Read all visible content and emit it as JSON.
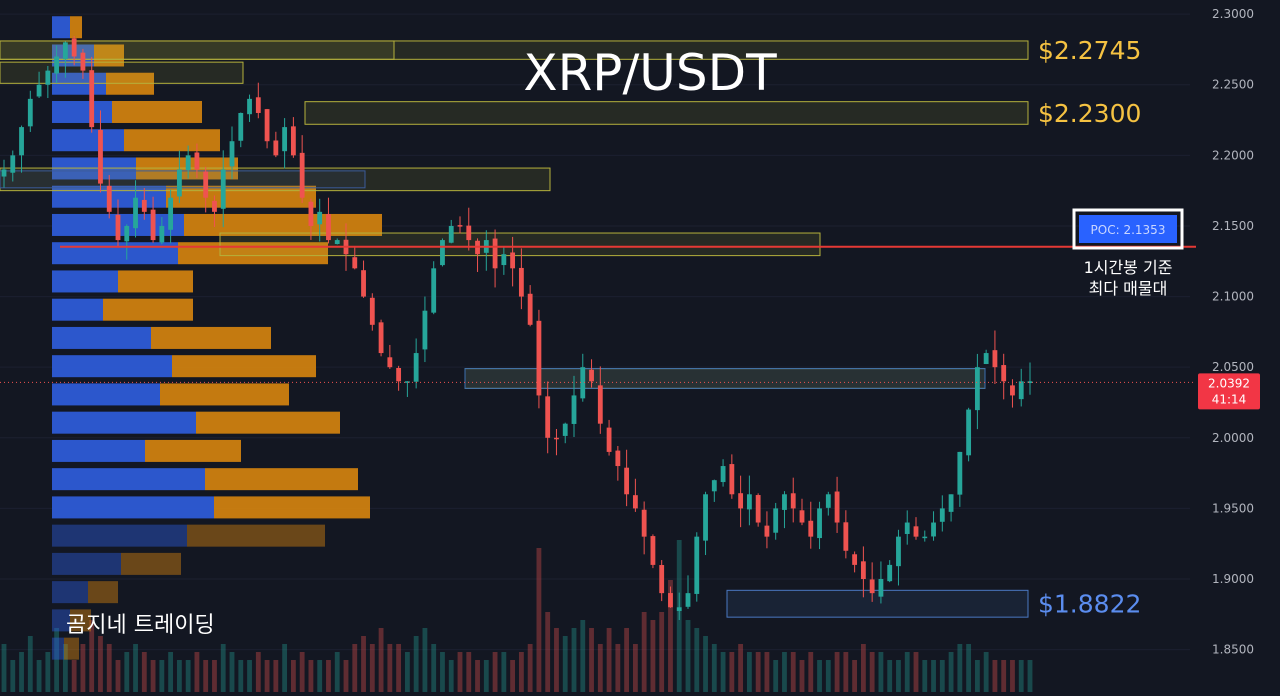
{
  "chart_data": {
    "type": "candlestick",
    "title": "XRP/USDT",
    "watermark": "곰지네 트레이딩",
    "ylim": [
      1.82,
      2.31
    ],
    "y_ticks": [
      "2.3000",
      "2.2500",
      "2.2000",
      "2.1500",
      "2.1000",
      "2.0500",
      "2.0000",
      "1.9500",
      "1.9000",
      "1.8500"
    ],
    "current_price": {
      "value": 2.0392,
      "label": "2.0392",
      "countdown": "41:14"
    },
    "poc": {
      "value": 2.1353,
      "label": "POC: 2.1353",
      "note_line1": "1시간봉 기준",
      "note_line2": "최다 매물대"
    },
    "levels": [
      {
        "label": "$2.2745",
        "low": 2.268,
        "high": 2.281,
        "color": "#f5c242"
      },
      {
        "label": "$2.2300",
        "low": 2.222,
        "high": 2.238,
        "color": "#f5c242"
      },
      {
        "label": "$1.8822",
        "low": 1.873,
        "high": 1.892,
        "color": "#5b8def"
      }
    ],
    "volume_profile": [
      {
        "price": 2.29,
        "buy": 0.06,
        "sell": 0.04
      },
      {
        "price": 2.27,
        "buy": 0.14,
        "sell": 0.1
      },
      {
        "price": 2.25,
        "buy": 0.18,
        "sell": 0.16
      },
      {
        "price": 2.23,
        "buy": 0.2,
        "sell": 0.3
      },
      {
        "price": 2.21,
        "buy": 0.24,
        "sell": 0.32
      },
      {
        "price": 2.19,
        "buy": 0.28,
        "sell": 0.34
      },
      {
        "price": 2.17,
        "buy": 0.38,
        "sell": 0.5
      },
      {
        "price": 2.15,
        "buy": 0.44,
        "sell": 0.66
      },
      {
        "price": 2.13,
        "buy": 0.42,
        "sell": 0.5
      },
      {
        "price": 2.11,
        "buy": 0.22,
        "sell": 0.25
      },
      {
        "price": 2.09,
        "buy": 0.17,
        "sell": 0.3
      },
      {
        "price": 2.07,
        "buy": 0.33,
        "sell": 0.4
      },
      {
        "price": 2.05,
        "buy": 0.4,
        "sell": 0.48
      },
      {
        "price": 2.03,
        "buy": 0.36,
        "sell": 0.43
      },
      {
        "price": 2.01,
        "buy": 0.48,
        "sell": 0.48
      },
      {
        "price": 1.99,
        "buy": 0.31,
        "sell": 0.32
      },
      {
        "price": 1.97,
        "buy": 0.51,
        "sell": 0.51
      },
      {
        "price": 1.95,
        "buy": 0.54,
        "sell": 0.52
      },
      {
        "price": 1.93,
        "buy": 0.45,
        "sell": 0.46
      },
      {
        "price": 1.91,
        "buy": 0.23,
        "sell": 0.2
      },
      {
        "price": 1.89,
        "buy": 0.12,
        "sell": 0.1
      },
      {
        "price": 1.87,
        "buy": 0.06,
        "sell": 0.07
      },
      {
        "price": 1.85,
        "buy": 0.04,
        "sell": 0.05
      }
    ],
    "close_path": [
      2.19,
      2.2,
      2.22,
      2.24,
      2.25,
      2.26,
      2.27,
      2.28,
      2.27,
      2.26,
      2.22,
      2.18,
      2.16,
      2.14,
      2.15,
      2.17,
      2.16,
      2.14,
      2.15,
      2.17,
      2.19,
      2.2,
      2.19,
      2.17,
      2.16,
      2.19,
      2.21,
      2.23,
      2.24,
      2.23,
      2.21,
      2.2,
      2.22,
      2.2,
      2.17,
      2.15,
      2.16,
      2.14,
      2.14,
      2.13,
      2.12,
      2.1,
      2.08,
      2.06,
      2.05,
      2.04,
      2.04,
      2.06,
      2.09,
      2.12,
      2.14,
      2.15,
      2.15,
      2.14,
      2.13,
      2.14,
      2.12,
      2.13,
      2.12,
      2.1,
      2.08,
      2.03,
      2.0,
      2.0,
      2.01,
      2.03,
      2.05,
      2.04,
      2.01,
      1.99,
      1.98,
      1.96,
      1.95,
      1.93,
      1.91,
      1.89,
      1.88,
      1.88,
      1.89,
      1.93,
      1.96,
      1.97,
      1.98,
      1.96,
      1.95,
      1.96,
      1.94,
      1.93,
      1.95,
      1.96,
      1.95,
      1.94,
      1.93,
      1.95,
      1.96,
      1.94,
      1.92,
      1.91,
      1.9,
      1.89,
      1.9,
      1.91,
      1.93,
      1.94,
      1.93,
      1.93,
      1.94,
      1.95,
      1.96,
      1.99,
      2.02,
      2.05,
      2.06,
      2.05,
      2.04,
      2.03,
      2.04,
      2.04
    ],
    "volume": [
      0.3,
      0.2,
      0.25,
      0.35,
      0.2,
      0.25,
      0.4,
      0.3,
      0.2,
      0.3,
      0.45,
      0.35,
      0.3,
      0.2,
      0.25,
      0.3,
      0.25,
      0.2,
      0.2,
      0.25,
      0.2,
      0.2,
      0.25,
      0.2,
      0.2,
      0.3,
      0.25,
      0.2,
      0.2,
      0.25,
      0.2,
      0.2,
      0.3,
      0.2,
      0.25,
      0.2,
      0.2,
      0.2,
      0.25,
      0.2,
      0.3,
      0.35,
      0.3,
      0.4,
      0.3,
      0.3,
      0.25,
      0.35,
      0.4,
      0.3,
      0.25,
      0.2,
      0.25,
      0.25,
      0.2,
      0.2,
      0.25,
      0.25,
      0.2,
      0.25,
      0.3,
      0.9,
      0.5,
      0.4,
      0.35,
      0.4,
      0.45,
      0.4,
      0.3,
      0.4,
      0.3,
      0.4,
      0.3,
      0.5,
      0.45,
      0.5,
      0.7,
      0.95,
      0.45,
      0.4,
      0.35,
      0.3,
      0.25,
      0.25,
      0.3,
      0.25,
      0.25,
      0.25,
      0.2,
      0.25,
      0.25,
      0.2,
      0.25,
      0.2,
      0.2,
      0.25,
      0.25,
      0.2,
      0.3,
      0.25,
      0.25,
      0.2,
      0.2,
      0.25,
      0.25,
      0.2,
      0.2,
      0.2,
      0.25,
      0.3,
      0.3,
      0.2,
      0.25,
      0.2,
      0.2,
      0.2,
      0.2,
      0.2
    ]
  }
}
